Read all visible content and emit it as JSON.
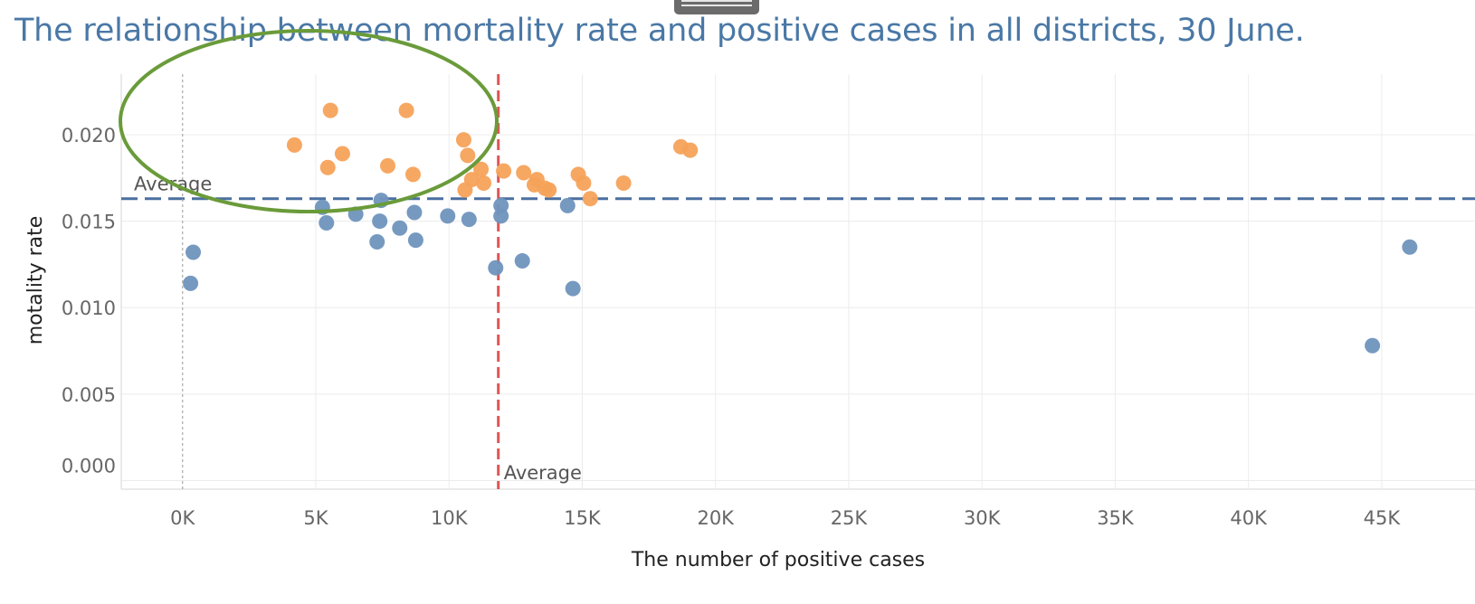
{
  "title": "The relationship between mortality rate and positive cases in all districts, 30 June.",
  "chart_data": {
    "type": "scatter",
    "title": "The relationship between mortality rate and positive cases in all districts, 30 June.",
    "xlabel": "The number of positive cases",
    "ylabel": "motality rate",
    "xlim": [
      -2300,
      48500
    ],
    "ylim": [
      -0.0005,
      0.0235
    ],
    "x_ticks": [
      0,
      5000,
      10000,
      15000,
      20000,
      25000,
      30000,
      35000,
      40000,
      45000
    ],
    "x_tick_labels": [
      "0K",
      "5K",
      "10K",
      "15K",
      "20K",
      "25K",
      "30K",
      "35K",
      "40K",
      "45K"
    ],
    "y_ticks": [
      0,
      0.005,
      0.01,
      0.015,
      0.02
    ],
    "y_tick_labels": [
      "0.000",
      "0.005",
      "0.010",
      "0.015",
      "0.020"
    ],
    "grid": true,
    "reference_lines": [
      {
        "axis": "y",
        "value": 0.0163,
        "label": "Average",
        "color": "#4a6fa0",
        "style": "dashed"
      },
      {
        "axis": "x",
        "value": 11850,
        "label": "Average",
        "color": "#e05555",
        "style": "dashed"
      },
      {
        "axis": "x",
        "value": 0,
        "label": "",
        "color": "#aaaaaa",
        "style": "dotted"
      }
    ],
    "annotation": {
      "shape": "ellipse",
      "color": "#6a9b3a",
      "description": "circled high-mortality group"
    },
    "series": [
      {
        "name": "",
        "color": "#f5a25a",
        "points": [
          [
            5550,
            0.0214
          ],
          [
            8400,
            0.0214
          ],
          [
            4200,
            0.0194
          ],
          [
            6000,
            0.0189
          ],
          [
            5450,
            0.0181
          ],
          [
            7700,
            0.0182
          ],
          [
            8650,
            0.0177
          ],
          [
            10550,
            0.0197
          ],
          [
            10700,
            0.0188
          ],
          [
            10850,
            0.0174
          ],
          [
            11200,
            0.018
          ],
          [
            11300,
            0.0172
          ],
          [
            10600,
            0.0168
          ],
          [
            12050,
            0.0179
          ],
          [
            12800,
            0.0178
          ],
          [
            13300,
            0.0174
          ],
          [
            13200,
            0.0171
          ],
          [
            13600,
            0.0169
          ],
          [
            13750,
            0.0168
          ],
          [
            14850,
            0.0177
          ],
          [
            15050,
            0.0172
          ],
          [
            15300,
            0.0163
          ],
          [
            16550,
            0.0172
          ],
          [
            18700,
            0.0193
          ],
          [
            19050,
            0.0191
          ]
        ]
      },
      {
        "name": "",
        "color": "#6f93bd",
        "points": [
          [
            5250,
            0.0158
          ],
          [
            5400,
            0.0149
          ],
          [
            6500,
            0.0154
          ],
          [
            7450,
            0.0162
          ],
          [
            7400,
            0.015
          ],
          [
            7300,
            0.0138
          ],
          [
            8150,
            0.0146
          ],
          [
            8700,
            0.0155
          ],
          [
            8750,
            0.0139
          ],
          [
            9950,
            0.0153
          ],
          [
            10750,
            0.0151
          ],
          [
            11950,
            0.0159
          ],
          [
            11950,
            0.0153
          ],
          [
            11750,
            0.0123
          ],
          [
            12750,
            0.0127
          ],
          [
            14450,
            0.0159
          ],
          [
            14650,
            0.0111
          ],
          [
            300,
            0.0114
          ],
          [
            400,
            0.0132
          ],
          [
            44650,
            0.0078
          ],
          [
            46050,
            0.0135
          ]
        ]
      }
    ]
  }
}
